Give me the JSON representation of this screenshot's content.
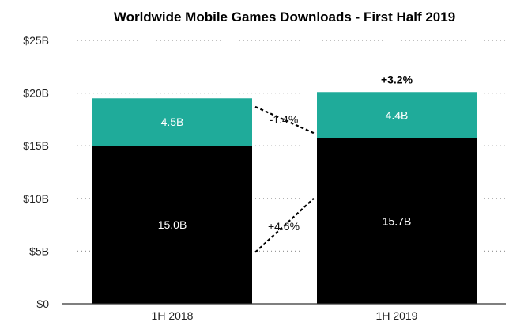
{
  "chart_data": {
    "type": "bar",
    "stacked": true,
    "title": "Worldwide Mobile Games Downloads - First Half 2019",
    "categories": [
      "1H 2018",
      "1H 2019"
    ],
    "series": [
      {
        "values": [
          15.0,
          15.7
        ],
        "labels": [
          "15.0B",
          "15.7B"
        ],
        "color": "#000000",
        "label_color": "#ffffff"
      },
      {
        "values": [
          4.5,
          4.4
        ],
        "labels": [
          "4.5B",
          "4.4B"
        ],
        "color": "#1fab9a",
        "label_color": "#ffffff"
      }
    ],
    "ylim": [
      0,
      25
    ],
    "yticks": [
      0,
      5,
      10,
      15,
      20,
      25
    ],
    "ytick_labels": [
      "$0",
      "$5B",
      "$10B",
      "$15B",
      "$20B",
      "$25B"
    ],
    "grid": true,
    "annotations": {
      "bottom_change": "+4.6%",
      "top_change": "-1.4%",
      "total_change": "+3.2%"
    },
    "xlabel": "",
    "ylabel": ""
  }
}
